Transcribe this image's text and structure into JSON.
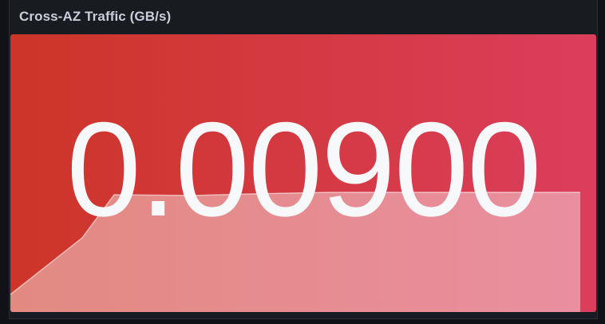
{
  "panel": {
    "title": "Cross-AZ Traffic (GB/s)",
    "value": "0.00900"
  },
  "colors": {
    "gradient_start": "#cd3528",
    "gradient_end": "#db3e5c",
    "sparkline_fill": "#f2c0c4",
    "panel_bg": "#181b1f",
    "page_bg": "#111217",
    "title_color": "#ccccdc",
    "value_color": "#f7f8fa"
  }
}
